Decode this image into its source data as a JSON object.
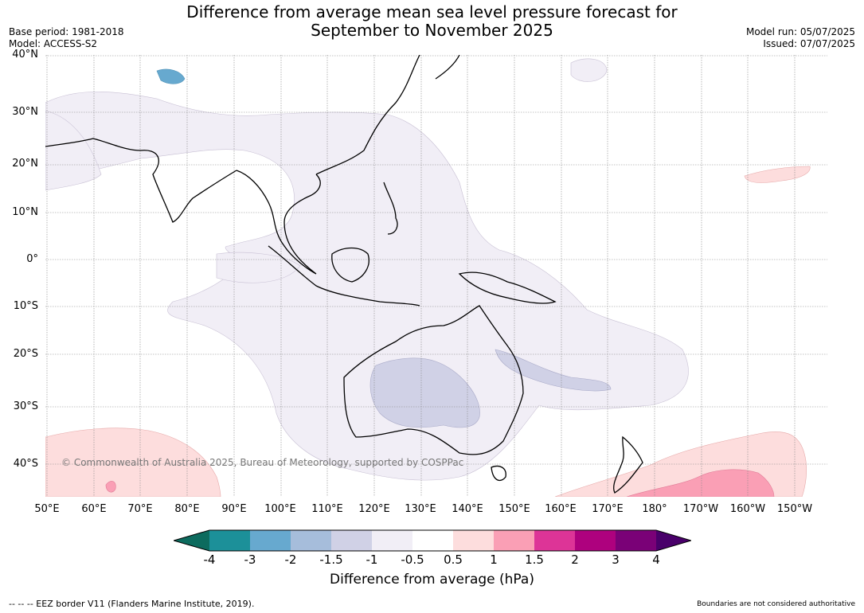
{
  "title_line1": "Difference from average mean sea level pressure forecast for",
  "title_line2": "September to November 2025",
  "base_period": "Base period: 1981-2018",
  "model": "Model: ACCESS-S2",
  "model_run": "Model run: 05/07/2025",
  "issued": "Issued: 07/07/2025",
  "lat_labels": [
    "40°N",
    "30°N",
    "20°N",
    "10°N",
    "0°",
    "10°S",
    "20°S",
    "30°S",
    "40°S"
  ],
  "lon_labels": [
    "50°E",
    "60°E",
    "70°E",
    "80°E",
    "90°E",
    "100°E",
    "110°E",
    "120°E",
    "130°E",
    "140°E",
    "150°E",
    "160°E",
    "170°E",
    "180°",
    "170°W",
    "160°W",
    "150°W"
  ],
  "copyright": "© Commonwealth of Australia 2025, Bureau of Meteorology, supported by COSPPac",
  "colorbar": {
    "ticks": [
      "-4",
      "-3",
      "-2",
      "-1.5",
      "-1",
      "-0.5",
      "0.5",
      "1",
      "1.5",
      "2",
      "3",
      "4"
    ],
    "colors": [
      "#0d6b5e",
      "#1c9099",
      "#67a9cf",
      "#a6bddb",
      "#d0d1e6",
      "#f1eef6",
      "#ffffff",
      "#fddddd",
      "#fa9fb5",
      "#dd3497",
      "#ae017e",
      "#7a0177",
      "#49006a"
    ],
    "label": "Difference from average (hPa)"
  },
  "footer_left": "--  --  -- EEZ border V11 (Flanders Marine Institute, 2019).",
  "footer_right": "Boundaries are not considered authoritative"
}
